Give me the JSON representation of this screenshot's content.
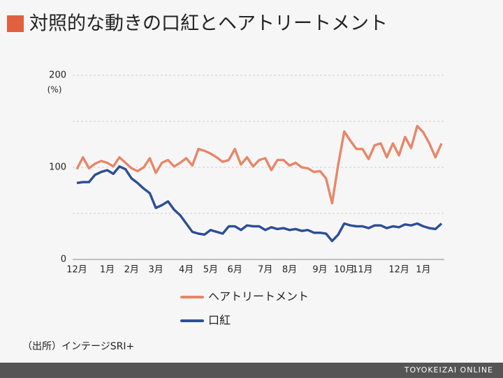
{
  "chart_data": {
    "type": "line",
    "title": "対照的な動きの口紅とヘアトリートメント",
    "y_unit": "(%)",
    "source": "（出所）インテージSRI+",
    "brand": "TOYOKEIZAI ONLINE",
    "categories": [
      "12月",
      null,
      null,
      null,
      null,
      "1月",
      null,
      null,
      null,
      "2月",
      null,
      null,
      null,
      "3月",
      null,
      null,
      null,
      null,
      "4月",
      null,
      null,
      null,
      "5月",
      null,
      null,
      null,
      "6月",
      null,
      null,
      null,
      null,
      "7月",
      null,
      null,
      null,
      "8月",
      null,
      null,
      null,
      null,
      "9月",
      null,
      null,
      null,
      "10月",
      null,
      null,
      "11月",
      null,
      null,
      null,
      null,
      null,
      "12月",
      null,
      null,
      null,
      "1月",
      null,
      null,
      null
    ],
    "series": [
      {
        "name": "ヘアトリートメント",
        "color": "#e8866a",
        "values": [
          98,
          111,
          99,
          104,
          107,
          105,
          101,
          111,
          105,
          99,
          96,
          100,
          110,
          94,
          105,
          108,
          101,
          105,
          110,
          102,
          120,
          118,
          115,
          111,
          106,
          108,
          120,
          103,
          111,
          101,
          108,
          110,
          97,
          108,
          108,
          102,
          105,
          100,
          99,
          95,
          96,
          88,
          61,
          103,
          139,
          129,
          120,
          120,
          109,
          124,
          126,
          111,
          126,
          113,
          133,
          121,
          145,
          138,
          126,
          111,
          126
        ]
      },
      {
        "name": "口紅",
        "color": "#2e4f96",
        "values": [
          83,
          84,
          84,
          92,
          95,
          97,
          93,
          101,
          98,
          88,
          83,
          77,
          72,
          56,
          59,
          63,
          54,
          48,
          39,
          30,
          28,
          27,
          32,
          30,
          28,
          36,
          36,
          32,
          37,
          36,
          36,
          32,
          35,
          33,
          34,
          32,
          33,
          31,
          32,
          29,
          29,
          28,
          20,
          27,
          39,
          37,
          36,
          36,
          34,
          37,
          37,
          34,
          36,
          35,
          38,
          37,
          39,
          36,
          34,
          33,
          39
        ]
      }
    ],
    "ylim": [
      0,
      200
    ],
    "yticks": [
      0,
      100,
      200
    ],
    "ygrid": [
      0,
      50,
      100,
      150,
      200
    ],
    "grid": true
  }
}
